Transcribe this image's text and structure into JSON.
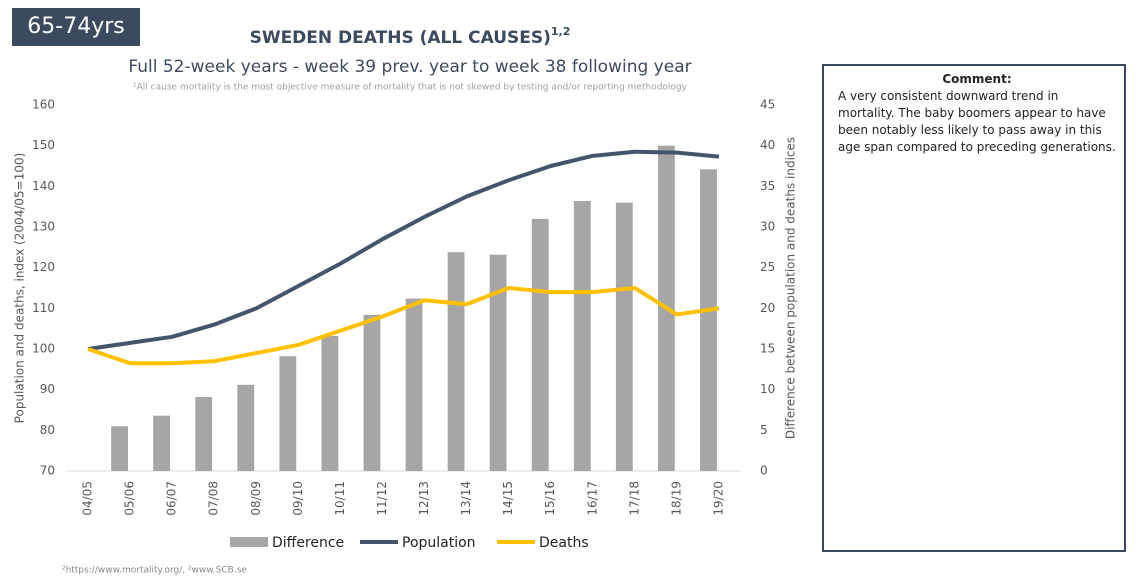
{
  "badge": "65-74yrs",
  "comment": {
    "title": "Comment:",
    "text": "A very consistent downward trend in mortality. The baby boomers appear to have been notably less likely to pass away in this age span compared to preceding generations."
  },
  "chart_data": {
    "type": "bar-line",
    "title": "SWEDEN DEATHS (ALL CAUSES)",
    "title_superscript": "1,2",
    "subtitle": "Full 52-week years - week 39 prev. year to week 38 following year",
    "footnote": "¹All cause mortality is the most objective measure of mortality that is not skewed by testing and/or reporting methodology",
    "source": "²https://www.mortality.org/, ²www.SCB.se",
    "ylabel": "Population and deaths, index (2004/05=100)",
    "y2label": "Difference between population and deaths indices",
    "categories": [
      "04/05",
      "05/06",
      "06/07",
      "07/08",
      "08/09",
      "09/10",
      "10/11",
      "11/12",
      "12/13",
      "13/14",
      "14/15",
      "15/16",
      "16/17",
      "17/18",
      "18/19",
      "19/20"
    ],
    "series": [
      {
        "name": "Difference",
        "type": "bar",
        "axis": "y2",
        "color": "#a6a6a6",
        "values": [
          0,
          5.5,
          6.8,
          9.1,
          10.6,
          14.1,
          16.6,
          19.2,
          21.2,
          26.9,
          26.6,
          31,
          33.2,
          33,
          40,
          37.1
        ]
      },
      {
        "name": "Population",
        "type": "line",
        "color": "#44546a",
        "values": [
          100,
          101.5,
          103,
          106,
          110,
          115.5,
          121,
          127,
          132.5,
          137.5,
          141.5,
          145,
          147.5,
          148.5,
          148.3,
          147.3
        ]
      },
      {
        "name": "Deaths",
        "type": "line",
        "color": "#ffc000",
        "values": [
          100,
          96.5,
          96.5,
          97,
          99,
          101,
          104.5,
          108,
          112,
          111,
          115,
          114,
          114,
          115,
          108.5,
          110
        ]
      }
    ],
    "ylim": [
      70,
      160
    ],
    "yticks": [
      70,
      80,
      90,
      100,
      110,
      120,
      130,
      140,
      150,
      160
    ],
    "y2lim": [
      0,
      45
    ],
    "y2ticks": [
      0,
      5,
      10,
      15,
      20,
      25,
      30,
      35,
      40,
      45
    ],
    "grid": false,
    "legend": "bottom"
  }
}
